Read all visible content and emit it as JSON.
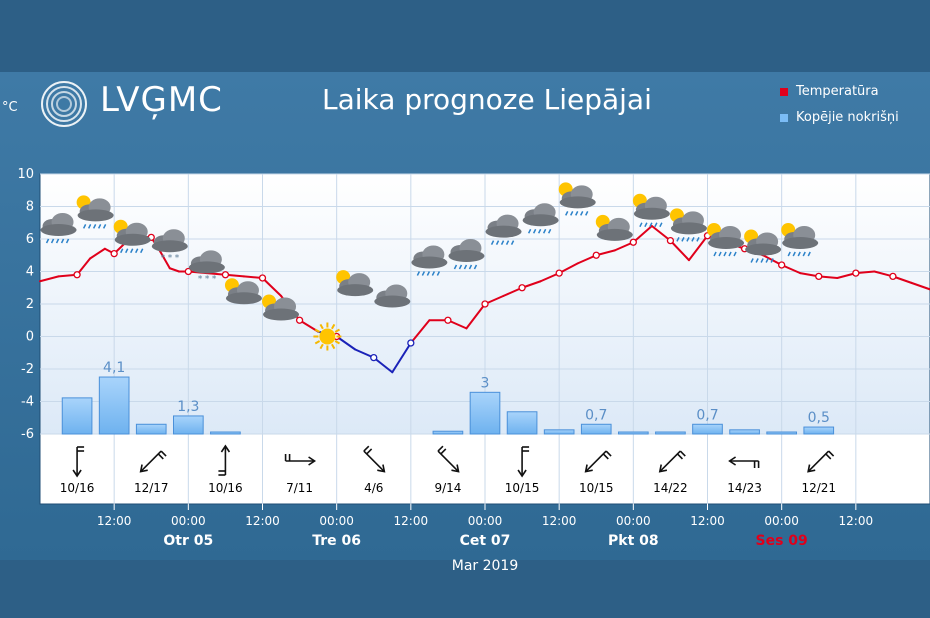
{
  "header": {
    "logo": "LVĢMC",
    "title": "Laika prognoze Liepājai",
    "unit": "°C"
  },
  "legend": [
    {
      "label": "Temperatūra",
      "color": "#e0001b"
    },
    {
      "label": "Kopējie nokrišņi",
      "color": "#7bbcf5"
    }
  ],
  "chart_data": {
    "type": "line",
    "ylim": [
      -6,
      10
    ],
    "yticks": [
      10,
      8,
      6,
      4,
      2,
      0,
      -2,
      -4,
      -6
    ],
    "x_hours": [
      -12,
      36
    ],
    "xlabel": "Mar 2019",
    "time_ticks": [
      {
        "h": -8,
        "label": "12:00"
      },
      {
        "h": -4,
        "label": "00:00"
      },
      {
        "h": 0,
        "label": "12:00"
      },
      {
        "h": 4,
        "label": "00:00"
      },
      {
        "h": 8,
        "label": "12:00"
      },
      {
        "h": 12,
        "label": "00:00"
      },
      {
        "h": 16,
        "label": "12:00"
      },
      {
        "h": 20,
        "label": "00:00"
      },
      {
        "h": 24,
        "label": "12:00"
      },
      {
        "h": 28,
        "label": "00:00"
      },
      {
        "h": 32,
        "label": "12:00"
      }
    ],
    "days": [
      {
        "h": -4,
        "label": "Otr 05",
        "color": "#ffffff"
      },
      {
        "h": 4,
        "label": "Tre 06",
        "color": "#ffffff"
      },
      {
        "h": 12,
        "label": "Cet 07",
        "color": "#ffffff"
      },
      {
        "h": 20,
        "label": "Pkt 08",
        "color": "#ffffff"
      },
      {
        "h": 28,
        "label": "Ses 09",
        "color": "#e0001b"
      }
    ],
    "temperature": {
      "name": "Temperatūra",
      "x": [
        -12,
        -11,
        -10,
        -9.3,
        -8.5,
        -8,
        -7,
        -6,
        -5.5,
        -5,
        -4.5,
        -4,
        -3,
        -2,
        -1,
        0,
        1,
        2,
        3,
        4,
        5,
        6,
        7,
        8,
        9,
        10,
        11,
        12,
        13,
        14,
        15,
        16,
        17,
        18,
        19,
        20,
        21,
        22,
        23,
        24,
        25,
        26,
        27,
        28,
        29,
        30,
        31,
        32,
        33,
        34,
        35,
        36
      ],
      "y": [
        3.4,
        3.7,
        3.8,
        4.8,
        5.4,
        5.1,
        6.2,
        6.1,
        5.2,
        4.2,
        4.0,
        4.0,
        3.9,
        3.8,
        3.7,
        3.6,
        2.5,
        1.0,
        0.3,
        0.0,
        -0.8,
        -1.3,
        -2.2,
        -0.4,
        1.0,
        1.0,
        0.5,
        2.0,
        2.5,
        3.0,
        3.4,
        3.9,
        4.5,
        5.0,
        5.3,
        5.8,
        6.8,
        5.9,
        4.7,
        6.2,
        5.8,
        5.4,
        5.0,
        4.4,
        3.9,
        3.7,
        3.6,
        3.9,
        4.0,
        3.7,
        3.3,
        2.9
      ],
      "markers": [
        -10,
        -8,
        -6,
        -4,
        -2,
        0,
        2,
        4,
        6,
        8,
        10,
        12,
        14,
        16,
        18,
        20,
        22,
        24,
        26,
        28,
        30,
        32,
        34
      ]
    },
    "precipitation": {
      "name": "Kopējie nokrišņi",
      "bars": [
        {
          "h": -10,
          "v": 2.6
        },
        {
          "h": -8,
          "v": 4.1,
          "label": "4,1"
        },
        {
          "h": -6,
          "v": 0.7
        },
        {
          "h": -4,
          "v": 1.3,
          "label": "1,3"
        },
        {
          "h": -2,
          "v": 0.1
        },
        {
          "h": 10,
          "v": 0.2
        },
        {
          "h": 12,
          "v": 3.0,
          "label": "3"
        },
        {
          "h": 14,
          "v": 1.6
        },
        {
          "h": 16,
          "v": 0.3
        },
        {
          "h": 18,
          "v": 0.7,
          "label": "0,7"
        },
        {
          "h": 20,
          "v": 0.1
        },
        {
          "h": 22,
          "v": 0.1
        },
        {
          "h": 24,
          "v": 0.7,
          "label": "0,7"
        },
        {
          "h": 26,
          "v": 0.3
        },
        {
          "h": 28,
          "v": 0.1
        },
        {
          "h": 30,
          "v": 0.5,
          "label": "0,5"
        }
      ]
    },
    "wind": [
      {
        "h": -10,
        "label": "10/16",
        "dir": 180
      },
      {
        "h": -6,
        "label": "12/17",
        "dir": 225
      },
      {
        "h": -2,
        "label": "10/16",
        "dir": 0
      },
      {
        "h": 2,
        "label": "7/11",
        "dir": 90
      },
      {
        "h": 6,
        "label": "4/6",
        "dir": 135
      },
      {
        "h": 10,
        "label": "9/14",
        "dir": 135
      },
      {
        "h": 14,
        "label": "10/15",
        "dir": 180
      },
      {
        "h": 18,
        "label": "10/15",
        "dir": 225
      },
      {
        "h": 22,
        "label": "14/22",
        "dir": 225
      },
      {
        "h": 26,
        "label": "14/23",
        "dir": 270
      },
      {
        "h": 30,
        "label": "12/21",
        "dir": 225
      }
    ],
    "weather_icons": [
      {
        "h": -11,
        "t": 6.8,
        "icon": "rain-cloud-icon"
      },
      {
        "h": -9,
        "t": 7.7,
        "icon": "sun-rain-cloud-icon"
      },
      {
        "h": -7,
        "t": 6.2,
        "icon": "sun-rain-cloud-icon"
      },
      {
        "h": -5,
        "t": 5.8,
        "icon": "snow-cloud-icon"
      },
      {
        "h": -3,
        "t": 4.5,
        "icon": "snow-cloud-icon"
      },
      {
        "h": -1,
        "t": 2.6,
        "icon": "sun-cloud-icon"
      },
      {
        "h": 1,
        "t": 1.6,
        "icon": "sun-cloud-icon"
      },
      {
        "h": 3.5,
        "t": 0,
        "icon": "sun-icon"
      },
      {
        "h": 5,
        "t": 3.1,
        "icon": "sun-cloud-icon"
      },
      {
        "h": 7,
        "t": 2.4,
        "icon": "cloud-icon"
      },
      {
        "h": 9,
        "t": 4.8,
        "icon": "rain-cloud-icon"
      },
      {
        "h": 11,
        "t": 5.2,
        "icon": "rain-cloud-icon"
      },
      {
        "h": 13,
        "t": 6.7,
        "icon": "rain-cloud-icon"
      },
      {
        "h": 15,
        "t": 7.4,
        "icon": "rain-cloud-icon"
      },
      {
        "h": 17,
        "t": 8.5,
        "icon": "sun-rain-cloud-icon"
      },
      {
        "h": 19,
        "t": 6.5,
        "icon": "sun-cloud-icon"
      },
      {
        "h": 21,
        "t": 7.8,
        "icon": "sun-rain-cloud-icon"
      },
      {
        "h": 23,
        "t": 6.9,
        "icon": "sun-rain-cloud-icon"
      },
      {
        "h": 25,
        "t": 6.0,
        "icon": "sun-rain-cloud-icon"
      },
      {
        "h": 27,
        "t": 5.6,
        "icon": "sun-rain-cloud-icon"
      },
      {
        "h": 29,
        "t": 6.0,
        "icon": "sun-rain-cloud-icon"
      }
    ]
  }
}
